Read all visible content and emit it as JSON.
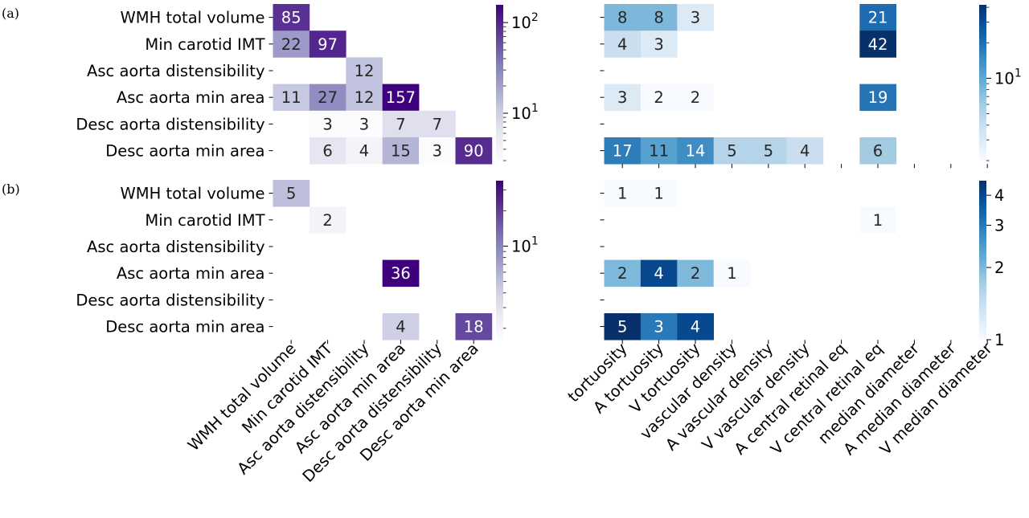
{
  "chart_data": [
    {
      "type": "heatmap",
      "panel_label": "(a)",
      "rows": [
        "WMH total volume",
        "Min carotid IMT",
        "Asc aorta distensibility",
        "Asc aorta min area",
        "Desc aorta distensibility",
        "Desc aorta min area"
      ],
      "left": {
        "columns": [
          "WMH total volume",
          "Min carotid IMT",
          "Asc aorta distensibility",
          "Asc aorta min area",
          "Desc aorta distensibility",
          "Desc aorta min area"
        ],
        "values": [
          [
            85,
            null,
            null,
            null,
            null,
            null
          ],
          [
            22,
            97,
            null,
            null,
            null,
            null
          ],
          [
            null,
            null,
            12,
            null,
            null,
            null
          ],
          [
            11,
            27,
            12,
            157,
            null,
            null
          ],
          [
            null,
            3,
            3,
            7,
            7,
            null
          ],
          [
            null,
            6,
            4,
            15,
            3,
            90
          ]
        ],
        "colorscale": "Purples",
        "color_scale_type": "log",
        "color_range": [
          3,
          157
        ],
        "colorbar_ticks": [
          {
            "value": 10,
            "base": "10",
            "exp": "1"
          },
          {
            "value": 100,
            "base": "10",
            "exp": "2"
          }
        ]
      },
      "right": {
        "columns": [
          "tortuosity",
          "A tortuosity",
          "V tortuosity",
          "vascular density",
          "A vascular density",
          "V vascular density",
          "A central retinal eq",
          "V central retinal eq",
          "median diameter",
          "A median diameter",
          "V median diameter"
        ],
        "values": [
          [
            8,
            8,
            3,
            null,
            null,
            null,
            null,
            21,
            null,
            null,
            null
          ],
          [
            4,
            3,
            null,
            null,
            null,
            null,
            null,
            42,
            null,
            null,
            null
          ],
          [
            null,
            null,
            null,
            null,
            null,
            null,
            null,
            null,
            null,
            null,
            null
          ],
          [
            3,
            2,
            2,
            null,
            null,
            null,
            null,
            19,
            null,
            null,
            null
          ],
          [
            null,
            null,
            null,
            null,
            null,
            null,
            null,
            null,
            null,
            null,
            null
          ],
          [
            17,
            11,
            14,
            5,
            5,
            4,
            null,
            6,
            null,
            null,
            null
          ]
        ],
        "colorscale": "Blues",
        "color_scale_type": "log",
        "color_range": [
          2,
          42
        ],
        "colorbar_ticks": [
          {
            "value": 10,
            "base": "10",
            "exp": "1"
          }
        ]
      }
    },
    {
      "type": "heatmap",
      "panel_label": "(b)",
      "rows": [
        "WMH total volume",
        "Min carotid IMT",
        "Asc aorta distensibility",
        "Asc aorta min area",
        "Desc aorta distensibility",
        "Desc aorta min area"
      ],
      "left": {
        "columns": [
          "WMH total volume",
          "Min carotid IMT",
          "Asc aorta distensibility",
          "Asc aorta min area",
          "Desc aorta distensibility",
          "Desc aorta min area"
        ],
        "values": [
          [
            5,
            null,
            null,
            null,
            null,
            null
          ],
          [
            null,
            2,
            null,
            null,
            null,
            null
          ],
          [
            null,
            null,
            null,
            null,
            null,
            null
          ],
          [
            null,
            null,
            null,
            36,
            null,
            null
          ],
          [
            null,
            null,
            null,
            null,
            null,
            null
          ],
          [
            null,
            null,
            null,
            4,
            null,
            18
          ]
        ],
        "colorscale": "Purples",
        "color_scale_type": "log",
        "color_range": [
          1.6,
          36
        ],
        "colorbar_ticks": [
          {
            "value": 10,
            "base": "10",
            "exp": "1"
          }
        ]
      },
      "right": {
        "columns": [
          "tortuosity",
          "A tortuosity",
          "V tortuosity",
          "vascular density",
          "A vascular density",
          "V vascular density",
          "A central retinal eq",
          "V central retinal eq",
          "median diameter",
          "A median diameter",
          "V median diameter"
        ],
        "values": [
          [
            1,
            1,
            null,
            null,
            null,
            null,
            null,
            null,
            null,
            null,
            null
          ],
          [
            null,
            null,
            null,
            null,
            null,
            null,
            null,
            1,
            null,
            null,
            null
          ],
          [
            null,
            null,
            null,
            null,
            null,
            null,
            null,
            null,
            null,
            null,
            null
          ],
          [
            2,
            4,
            2,
            1,
            null,
            null,
            null,
            null,
            null,
            null,
            null
          ],
          [
            null,
            null,
            null,
            null,
            null,
            null,
            null,
            null,
            null,
            null,
            null
          ],
          [
            5,
            3,
            4,
            null,
            null,
            null,
            null,
            null,
            null,
            null,
            null
          ]
        ],
        "colorscale": "Blues",
        "color_scale_type": "log",
        "color_range": [
          1,
          4.6
        ],
        "colorbar_ticks": [
          {
            "value": 1,
            "label": "1"
          },
          {
            "value": 2,
            "label": "2"
          },
          {
            "value": 3,
            "label": "3"
          },
          {
            "value": 4,
            "label": "4"
          }
        ]
      }
    }
  ]
}
